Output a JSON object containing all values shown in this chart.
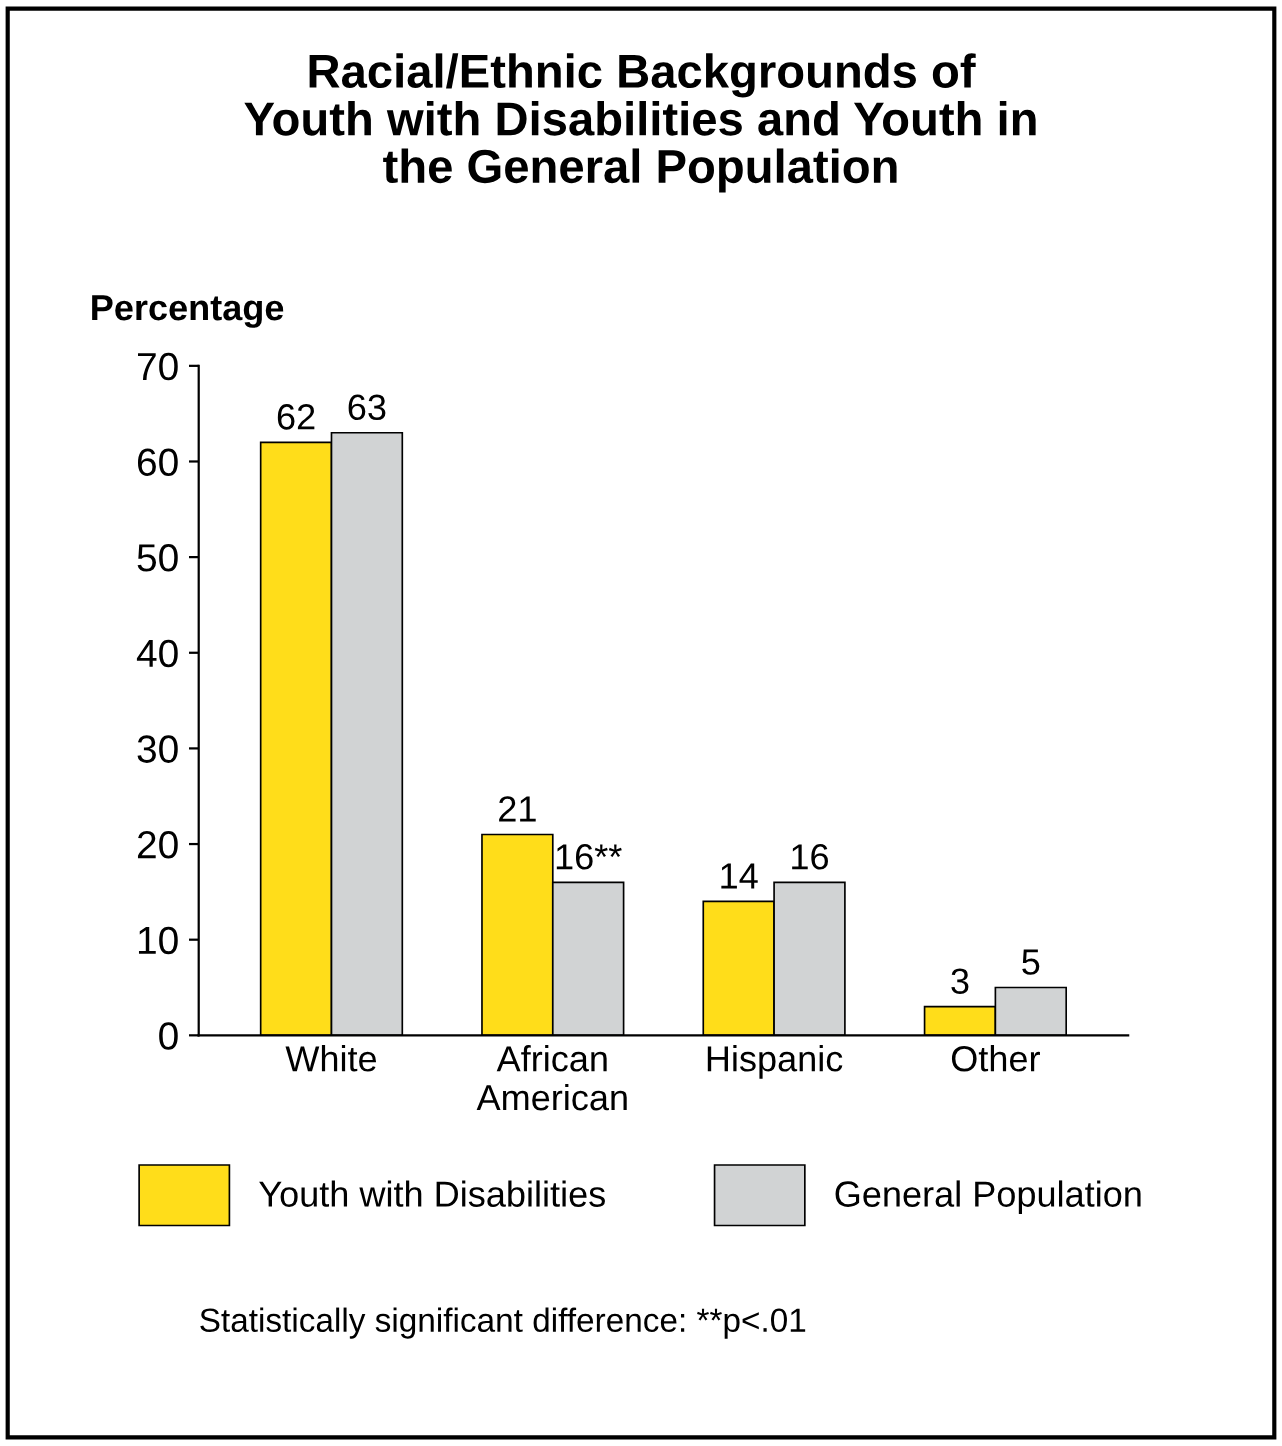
{
  "chart_data": {
    "type": "bar",
    "title": "Racial/Ethnic Backgrounds of\nYouth with Disabilities and Youth in\nthe General Population",
    "ylabel": "Percentage",
    "categories": [
      "White",
      "African\nAmerican",
      "Hispanic",
      "Other"
    ],
    "series": [
      {
        "name": "Youth with Disabilities",
        "color": "#ffdd1a",
        "values": [
          62,
          21,
          14,
          3
        ],
        "value_labels": [
          "62",
          "21",
          "14",
          "3"
        ]
      },
      {
        "name": "General Population",
        "color": "#d1d3d4",
        "values": [
          63,
          16,
          16,
          5
        ],
        "value_labels": [
          "63",
          "16**",
          "16",
          "5"
        ]
      }
    ],
    "ylim": [
      0,
      70
    ],
    "yticks": [
      0,
      10,
      20,
      30,
      40,
      50,
      60,
      70
    ],
    "grid": false,
    "legend": "bottom",
    "annotations": [
      "Statistically significant difference: **p<.01"
    ]
  }
}
